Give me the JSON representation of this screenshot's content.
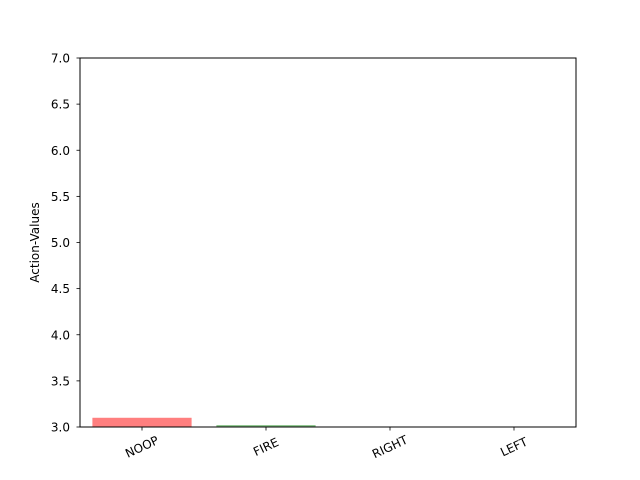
{
  "chart_data": {
    "type": "bar",
    "categories": [
      "NOOP",
      "FIRE",
      "RIGHT",
      "LEFT"
    ],
    "values": [
      3.1,
      3.02,
      3.0,
      3.0
    ],
    "bar_colors": [
      "#ff7f7f",
      "#7fbf7f",
      "#7f7fff",
      "#bfbfbf"
    ],
    "title": "",
    "xlabel": "",
    "ylabel": "Action-Values",
    "ylim": [
      3.0,
      7.0
    ],
    "yticks": [
      "3.0",
      "3.5",
      "4.0",
      "4.5",
      "5.0",
      "5.5",
      "6.0",
      "6.5",
      "7.0"
    ],
    "grid": false,
    "legend": "none"
  }
}
